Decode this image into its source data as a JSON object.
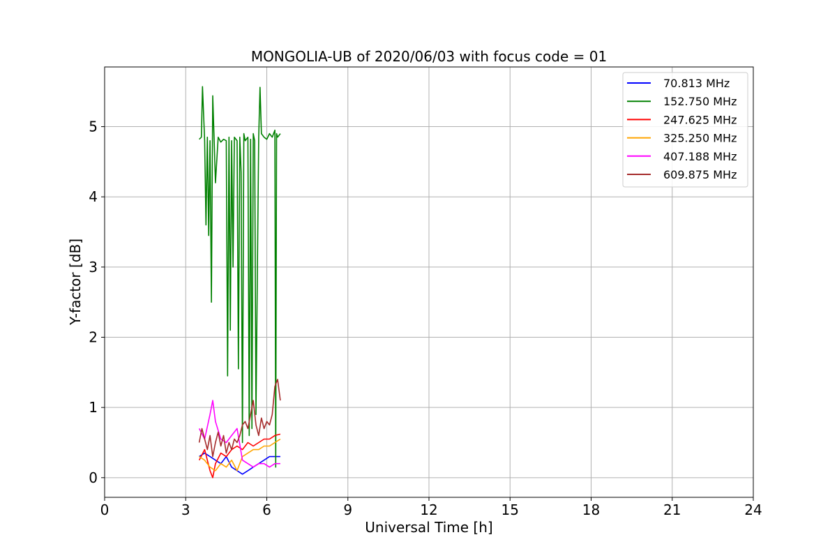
{
  "chart_data": {
    "type": "line",
    "title": "MONGOLIA-UB of 2020/06/03 with focus code = 01",
    "xlabel": "Universal Time [h]",
    "ylabel": "Y-factor [dB]",
    "xlim": [
      0,
      24
    ],
    "ylim": [
      -0.28,
      5.85
    ],
    "xticks": [
      0,
      3,
      6,
      9,
      12,
      15,
      18,
      21,
      24
    ],
    "yticks": [
      0,
      1,
      2,
      3,
      4,
      5
    ],
    "grid": true,
    "legend_position": "top-right",
    "series": [
      {
        "name": " 70.813 MHz",
        "color": "#0000ff",
        "x": [
          3.5,
          3.7,
          3.9,
          4.1,
          4.3,
          4.5,
          4.7,
          4.9,
          5.1,
          5.3,
          5.5,
          5.7,
          5.9,
          6.1,
          6.3,
          6.5
        ],
        "y": [
          0.3,
          0.35,
          0.3,
          0.25,
          0.2,
          0.3,
          0.15,
          0.1,
          0.05,
          0.1,
          0.15,
          0.2,
          0.25,
          0.3,
          0.3,
          0.3
        ]
      },
      {
        "name": "152.750 MHz",
        "color": "#008000",
        "x": [
          3.5,
          3.58,
          3.62,
          3.7,
          3.75,
          3.8,
          3.85,
          3.9,
          3.95,
          4.0,
          4.05,
          4.1,
          4.2,
          4.3,
          4.4,
          4.5,
          4.55,
          4.6,
          4.65,
          4.7,
          4.75,
          4.8,
          4.9,
          4.95,
          5.0,
          5.05,
          5.1,
          5.15,
          5.2,
          5.3,
          5.35,
          5.4,
          5.45,
          5.5,
          5.55,
          5.6,
          5.7,
          5.75,
          5.8,
          5.9,
          6.0,
          6.1,
          6.2,
          6.3,
          6.33,
          6.36,
          6.4,
          6.5
        ],
        "y": [
          4.82,
          4.85,
          5.57,
          4.8,
          3.6,
          4.85,
          3.45,
          4.8,
          2.5,
          5.44,
          4.85,
          4.2,
          4.85,
          4.78,
          4.82,
          4.8,
          1.45,
          4.85,
          2.1,
          4.8,
          3.0,
          4.85,
          4.8,
          1.55,
          4.85,
          4.35,
          0.5,
          4.9,
          4.8,
          4.85,
          0.6,
          4.82,
          0.7,
          4.9,
          4.8,
          0.9,
          4.85,
          5.56,
          4.9,
          4.85,
          4.82,
          4.9,
          4.85,
          4.95,
          0.15,
          4.9,
          4.85,
          4.9
        ]
      },
      {
        "name": "247.625 MHz",
        "color": "#ff0000",
        "x": [
          3.5,
          3.7,
          3.9,
          4.0,
          4.1,
          4.3,
          4.5,
          4.7,
          4.9,
          5.1,
          5.3,
          5.5,
          5.7,
          5.9,
          6.1,
          6.3,
          6.5
        ],
        "y": [
          0.25,
          0.4,
          0.1,
          0.0,
          0.2,
          0.35,
          0.3,
          0.4,
          0.45,
          0.4,
          0.5,
          0.45,
          0.5,
          0.55,
          0.55,
          0.6,
          0.62
        ]
      },
      {
        "name": "325.250 MHz",
        "color": "#ffa500",
        "x": [
          3.5,
          3.7,
          3.9,
          4.1,
          4.3,
          4.5,
          4.7,
          4.9,
          5.1,
          5.3,
          5.5,
          5.7,
          5.9,
          6.1,
          6.3,
          6.5
        ],
        "y": [
          0.3,
          0.25,
          0.15,
          0.1,
          0.2,
          0.15,
          0.25,
          0.1,
          0.3,
          0.35,
          0.4,
          0.4,
          0.45,
          0.45,
          0.5,
          0.55
        ]
      },
      {
        "name": "407.188 MHz",
        "color": "#ff00ff",
        "x": [
          3.5,
          3.7,
          3.9,
          4.0,
          4.1,
          4.3,
          4.5,
          4.7,
          4.9,
          5.1,
          5.3,
          5.5,
          5.7,
          5.9,
          6.1,
          6.3,
          6.5
        ],
        "y": [
          0.7,
          0.55,
          0.9,
          1.1,
          0.8,
          0.55,
          0.5,
          0.6,
          0.7,
          0.25,
          0.2,
          0.15,
          0.2,
          0.2,
          0.15,
          0.2,
          0.2
        ]
      },
      {
        "name": "609.875 MHz",
        "color": "#a52a2a",
        "x": [
          3.5,
          3.6,
          3.7,
          3.8,
          3.9,
          4.0,
          4.1,
          4.2,
          4.3,
          4.4,
          4.5,
          4.6,
          4.7,
          4.8,
          4.9,
          5.0,
          5.1,
          5.2,
          5.3,
          5.4,
          5.5,
          5.6,
          5.7,
          5.8,
          5.9,
          6.0,
          6.1,
          6.2,
          6.3,
          6.4,
          6.5
        ],
        "y": [
          0.5,
          0.7,
          0.55,
          0.4,
          0.6,
          0.3,
          0.5,
          0.65,
          0.45,
          0.6,
          0.35,
          0.5,
          0.4,
          0.55,
          0.5,
          0.6,
          0.75,
          0.8,
          0.7,
          0.9,
          1.1,
          0.75,
          0.6,
          0.85,
          0.7,
          0.8,
          0.75,
          0.9,
          1.3,
          1.4,
          1.1
        ]
      }
    ]
  }
}
